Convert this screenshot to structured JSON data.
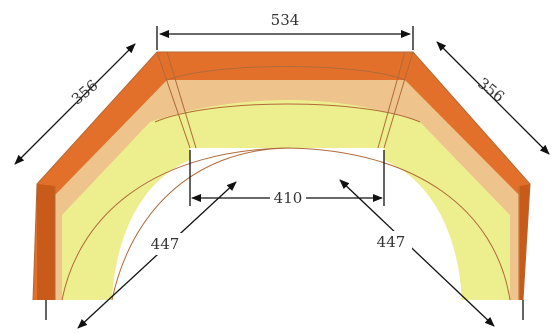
{
  "colors": {
    "frame_orange": "#E2702A",
    "frame_orange_dark": "#C85A1A",
    "band_tan": "#EFC38C",
    "band_yellow": "#EDEE8E",
    "outline": "#B06A3A",
    "dimension_line": "#111111"
  },
  "dimensions": {
    "top_width": "534",
    "left_side": "356",
    "right_side": "356",
    "inner_width": "410",
    "left_depth": "447",
    "right_depth": "447"
  }
}
